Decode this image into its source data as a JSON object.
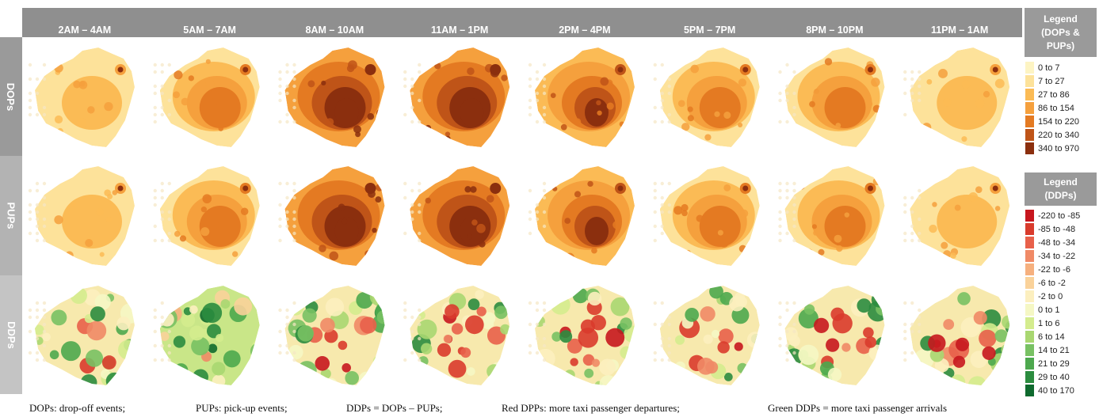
{
  "columns": [
    "2AM – 4AM",
    "5AM – 7AM",
    "8AM – 10AM",
    "11AM – 1PM",
    "2PM – 4PM",
    "5PM – 7PM",
    "8PM – 10PM",
    "11PM – 1AM"
  ],
  "rows": [
    "DOPs",
    "PUPs",
    "DDPs"
  ],
  "intensity": {
    "DOPs": [
      0.25,
      0.55,
      0.85,
      0.85,
      0.72,
      0.55,
      0.48,
      0.3
    ],
    "PUPs": [
      0.25,
      0.5,
      0.82,
      0.85,
      0.72,
      0.58,
      0.5,
      0.3
    ],
    "DDPs": [
      -0.25,
      0.65,
      -0.45,
      -0.6,
      -0.7,
      -0.5,
      -0.35,
      -0.3
    ]
  },
  "legend1": {
    "title": "Legend (DOPs & PUPs)",
    "items": [
      {
        "label": "0 to 7",
        "color": "#fdf4c3"
      },
      {
        "label": "7 to 27",
        "color": "#fde29a"
      },
      {
        "label": "27 to 86",
        "color": "#fbbb55"
      },
      {
        "label": "86 to 154",
        "color": "#f5a03d"
      },
      {
        "label": "154 to 220",
        "color": "#e47a22"
      },
      {
        "label": "220 to 340",
        "color": "#bf5418"
      },
      {
        "label": "340 to 970",
        "color": "#8b2f0e"
      }
    ]
  },
  "legend2": {
    "title": "Legend (DDPs)",
    "items": [
      {
        "label": "-220 to -85",
        "color": "#c7171e"
      },
      {
        "label": "-85 to -48",
        "color": "#d93b2c"
      },
      {
        "label": "-48 to -34",
        "color": "#e8604a"
      },
      {
        "label": "-34 to -22",
        "color": "#f08a66"
      },
      {
        "label": "-22 to -6",
        "color": "#f6b07e"
      },
      {
        "label": "-6 to -2",
        "color": "#fad29a"
      },
      {
        "label": "-2 to 0",
        "color": "#fcefbf"
      },
      {
        "label": "0 to 1",
        "color": "#f5f7c4"
      },
      {
        "label": "1 to 6",
        "color": "#d4ec8e"
      },
      {
        "label": "6 to 14",
        "color": "#a9d771"
      },
      {
        "label": "14 to 21",
        "color": "#78c163"
      },
      {
        "label": "21 to 29",
        "color": "#4da84e"
      },
      {
        "label": "29 to 40",
        "color": "#2b8c3f"
      },
      {
        "label": "40 to 170",
        "color": "#0f6a2e"
      }
    ]
  },
  "footnotes": [
    "DOPs: drop-off events;",
    "PUPs: pick-up events;",
    "DDPs = DOPs – PUPs;",
    "Red DPPs: more taxi passenger departures;",
    "Green DDPs = more taxi passenger arrivals"
  ]
}
